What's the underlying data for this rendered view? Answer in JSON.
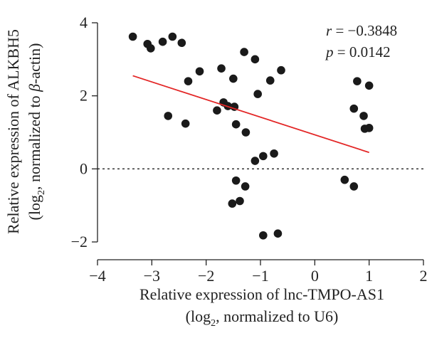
{
  "chart_data": {
    "type": "scatter",
    "xlabel_line1": "Relative expression of lnc-TMPO-AS1",
    "xlabel_line2_prefix": "(log",
    "xlabel_line2_sub": "2",
    "xlabel_line2_suffix": ", normalized to U6)",
    "ylabel_line1": "Relative expression of ALKBH5",
    "ylabel_line2_prefix": "(log",
    "ylabel_line2_sub": "2",
    "ylabel_line2_mid": ", normalized to ",
    "ylabel_line2_beta": "β",
    "ylabel_line2_suffix": "-actin)",
    "xlim": [
      -4,
      2
    ],
    "ylim": [
      -2,
      4
    ],
    "xticks": [
      -4,
      -3,
      -2,
      -1,
      0,
      1,
      2
    ],
    "yticks": [
      -2,
      0,
      2,
      4
    ],
    "xtick_labels": [
      "−4",
      "−3",
      "−2",
      "−1",
      "0",
      "1",
      "2"
    ],
    "ytick_labels": [
      "−2",
      "0",
      "2",
      "4"
    ],
    "annotation_r_label": "r",
    "annotation_r_value": " = −0.3848",
    "annotation_p_label": "p",
    "annotation_p_value": " = 0.0142",
    "reference_line_y": 0,
    "grid": false,
    "colors": {
      "points": "#1a1a1a",
      "fit_line": "#e32626",
      "axis": "#222222"
    },
    "fit_line": {
      "x": [
        -3.35,
        1.0
      ],
      "y": [
        2.55,
        0.45
      ]
    },
    "points": [
      {
        "x": -3.35,
        "y": 3.62
      },
      {
        "x": -3.08,
        "y": 3.42
      },
      {
        "x": -3.02,
        "y": 3.3
      },
      {
        "x": -2.8,
        "y": 3.48
      },
      {
        "x": -2.62,
        "y": 3.62
      },
      {
        "x": -2.45,
        "y": 3.45
      },
      {
        "x": -2.7,
        "y": 1.45
      },
      {
        "x": -2.38,
        "y": 1.24
      },
      {
        "x": -2.33,
        "y": 2.4
      },
      {
        "x": -2.12,
        "y": 2.67
      },
      {
        "x": -1.8,
        "y": 1.6
      },
      {
        "x": -1.72,
        "y": 2.75
      },
      {
        "x": -1.68,
        "y": 1.82
      },
      {
        "x": -1.6,
        "y": 1.72
      },
      {
        "x": -1.5,
        "y": 2.47
      },
      {
        "x": -1.48,
        "y": 1.7
      },
      {
        "x": -1.45,
        "y": 1.22
      },
      {
        "x": -1.3,
        "y": 3.2
      },
      {
        "x": -1.27,
        "y": 1.0
      },
      {
        "x": -1.1,
        "y": 3.0
      },
      {
        "x": -1.05,
        "y": 2.05
      },
      {
        "x": -0.82,
        "y": 2.42
      },
      {
        "x": -0.62,
        "y": 2.7
      },
      {
        "x": -1.1,
        "y": 0.22
      },
      {
        "x": -0.95,
        "y": 0.35
      },
      {
        "x": -0.75,
        "y": 0.42
      },
      {
        "x": -1.45,
        "y": -0.32
      },
      {
        "x": -1.28,
        "y": -0.48
      },
      {
        "x": -1.38,
        "y": -0.88
      },
      {
        "x": -1.52,
        "y": -0.95
      },
      {
        "x": -0.95,
        "y": -1.82
      },
      {
        "x": -0.68,
        "y": -1.77
      },
      {
        "x": 0.78,
        "y": 2.4
      },
      {
        "x": 1.0,
        "y": 2.28
      },
      {
        "x": 0.72,
        "y": 1.65
      },
      {
        "x": 0.9,
        "y": 1.45
      },
      {
        "x": 0.92,
        "y": 1.1
      },
      {
        "x": 1.0,
        "y": 1.12
      },
      {
        "x": 0.55,
        "y": -0.3
      },
      {
        "x": 0.72,
        "y": -0.48
      }
    ]
  }
}
